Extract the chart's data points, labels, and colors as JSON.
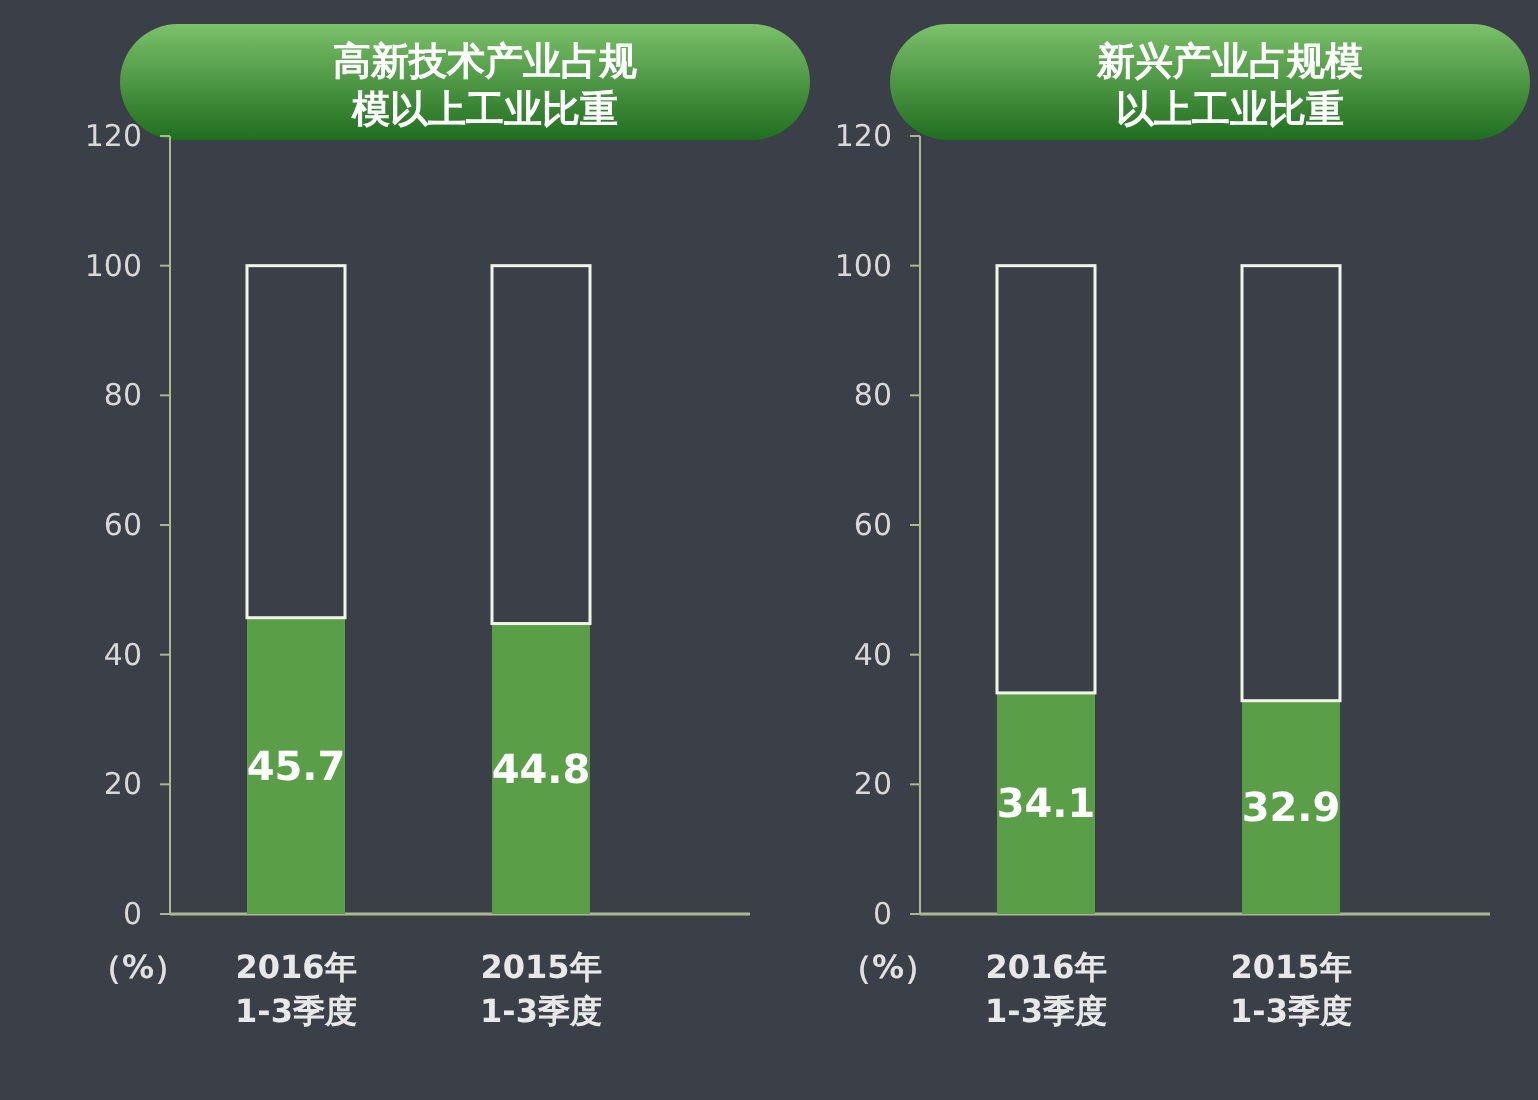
{
  "chart_data": [
    {
      "type": "bar",
      "title": "高新技术产业占规模以上工业比重",
      "ylabel": "（%）",
      "categories": [
        "2016年\n1-3季度",
        "2015年\n1-3季度"
      ],
      "stacked": true,
      "ylim": [
        0,
        120
      ],
      "yticks": [
        0,
        20,
        40,
        60,
        80,
        100,
        120
      ],
      "series": [
        {
          "color": "#5a9e48",
          "values": [
            45.7,
            44.8
          ],
          "value_labels": [
            "45.7",
            "44.8"
          ]
        },
        {
          "color": "#f0f5e8",
          "values": [
            54.3,
            55.2
          ]
        }
      ]
    },
    {
      "type": "bar",
      "title": "新兴产业占规模以上工业比重",
      "ylabel": "（%）",
      "categories": [
        "2016年\n1-3季度",
        "2015年\n1-3季度"
      ],
      "stacked": true,
      "ylim": [
        0,
        120
      ],
      "yticks": [
        0,
        20,
        40,
        60,
        80,
        100,
        120
      ],
      "series": [
        {
          "color": "#5a9e48",
          "values": [
            34.1,
            32.9
          ],
          "value_labels": [
            "34.1",
            "32.9"
          ]
        },
        {
          "color": "#f0f5e8",
          "values": [
            65.9,
            67.1
          ]
        }
      ]
    }
  ]
}
